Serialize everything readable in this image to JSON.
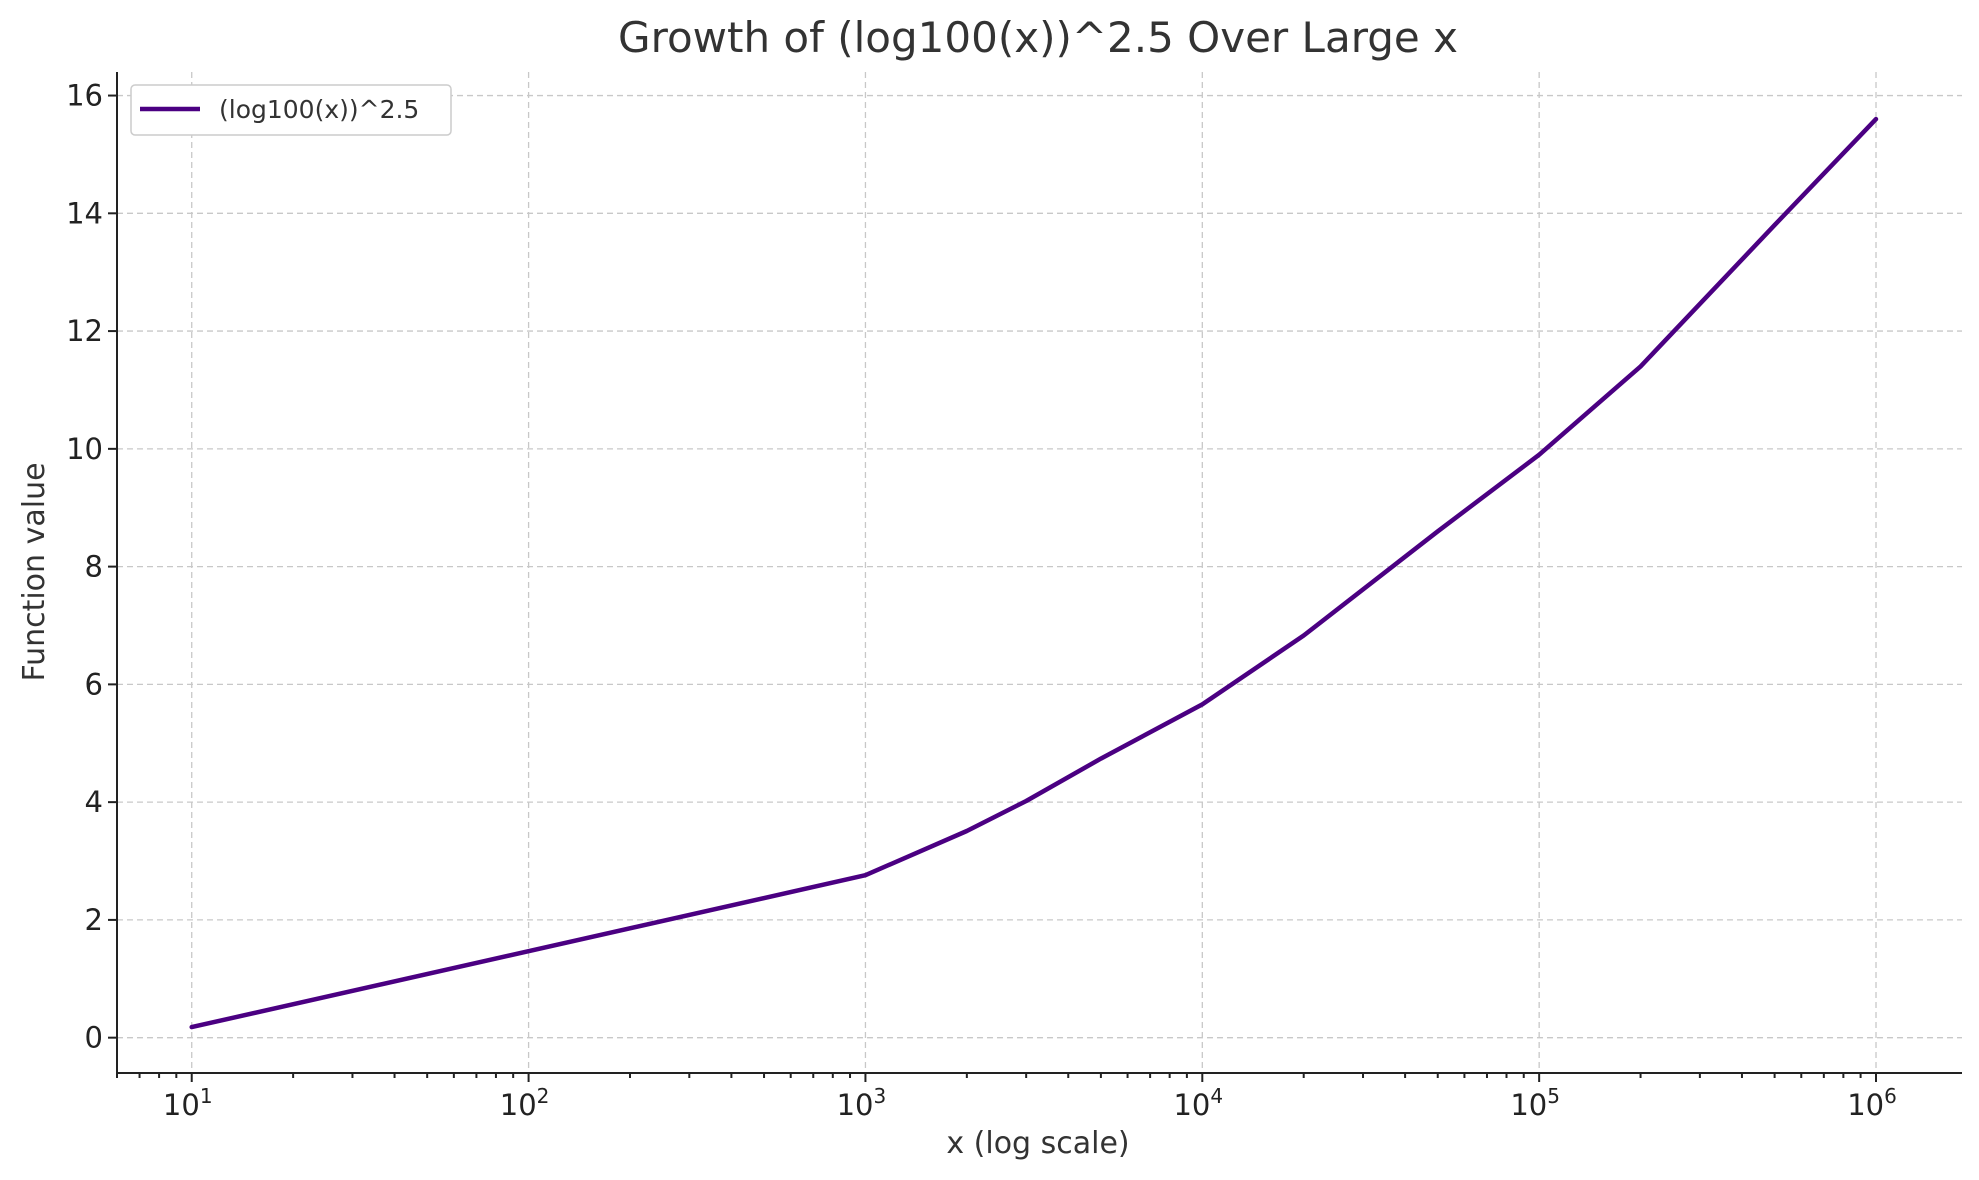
{
  "chart_data": {
    "type": "line",
    "title": "Growth of (log100(x))^2.5 Over Large x",
    "xlabel": "x (log scale)",
    "ylabel": "Function value",
    "x_scale": "log",
    "xlim": [
      6,
      1800000
    ],
    "ylim": [
      -0.6,
      16.4
    ],
    "grid": true,
    "legend_position": "top-left",
    "x_ticks": [
      {
        "value": 10,
        "base": "10",
        "exp": "1"
      },
      {
        "value": 100,
        "base": "10",
        "exp": "2"
      },
      {
        "value": 1000,
        "base": "10",
        "exp": "3"
      },
      {
        "value": 10000,
        "base": "10",
        "exp": "4"
      },
      {
        "value": 100000,
        "base": "10",
        "exp": "5"
      },
      {
        "value": 1000000,
        "base": "10",
        "exp": "6"
      }
    ],
    "y_ticks": [
      0,
      2,
      4,
      6,
      8,
      10,
      12,
      14,
      16
    ],
    "series": [
      {
        "name": "(log100(x))^2.5",
        "color": "#4b0082",
        "x": [
          10,
          1000,
          2000,
          3000,
          5000,
          10000,
          20000,
          50000,
          100000,
          200000,
          500000,
          1000000
        ],
        "y": [
          0.18,
          2.76,
          3.51,
          4.02,
          4.74,
          5.66,
          6.83,
          8.6,
          9.9,
          11.4,
          13.8,
          15.6
        ]
      }
    ]
  }
}
